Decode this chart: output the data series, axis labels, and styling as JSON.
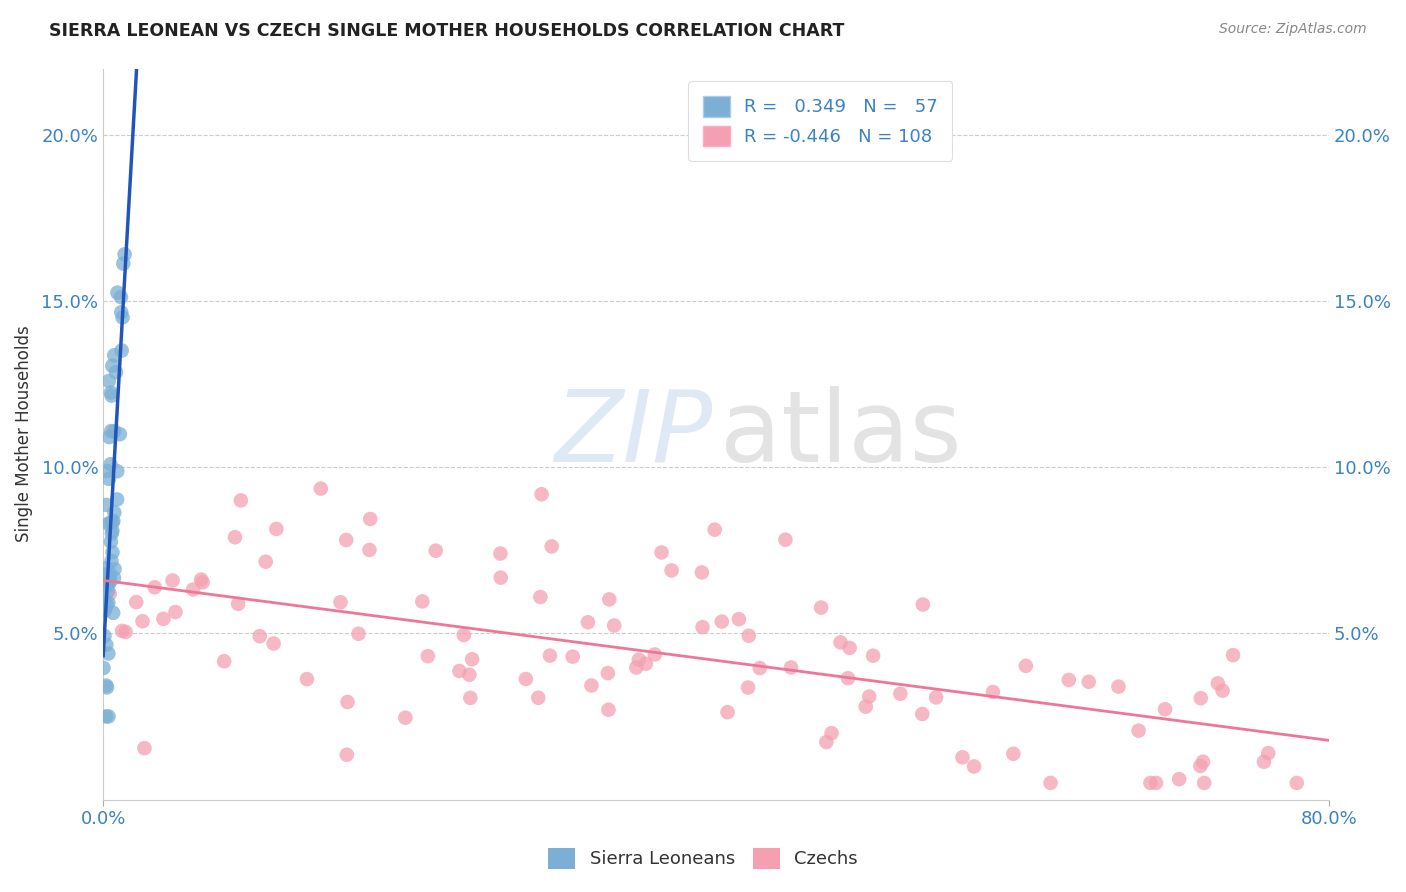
{
  "title": "SIERRA LEONEAN VS CZECH SINGLE MOTHER HOUSEHOLDS CORRELATION CHART",
  "source": "Source: ZipAtlas.com",
  "ylabel": "Single Mother Households",
  "ytick_labels": [
    "5.0%",
    "10.0%",
    "15.0%",
    "20.0%"
  ],
  "ytick_values": [
    0.05,
    0.1,
    0.15,
    0.2
  ],
  "xlim": [
    0.0,
    0.8
  ],
  "ylim": [
    0.0,
    0.22
  ],
  "blue_R": 0.349,
  "blue_N": 57,
  "pink_R": -0.446,
  "pink_N": 108,
  "blue_color": "#7BAFD4",
  "pink_color": "#F4A0B0",
  "blue_line_solid_color": "#2255BB",
  "blue_line_dash_color": "#88AADD",
  "pink_line_color": "#EE7799",
  "legend_labels": [
    "Sierra Leoneans",
    "Czechs"
  ],
  "background_color": "#FFFFFF",
  "watermark_zip_color": "#C5D8EE",
  "watermark_atlas_color": "#CCCCCC"
}
